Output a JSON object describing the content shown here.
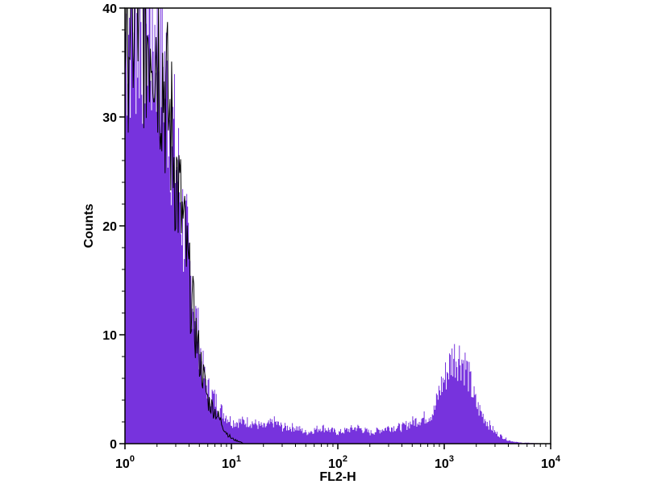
{
  "chart_data": {
    "type": "area",
    "title": "",
    "xlabel": "FL2-H",
    "ylabel": "Counts",
    "x_scale": "log",
    "xlim": [
      1,
      10000
    ],
    "ylim": [
      0,
      40
    ],
    "grid": false,
    "x_ticks": [
      {
        "base": "10",
        "exp": "0"
      },
      {
        "base": "10",
        "exp": "1"
      },
      {
        "base": "10",
        "exp": "2"
      },
      {
        "base": "10",
        "exp": "3"
      },
      {
        "base": "10",
        "exp": "4"
      }
    ],
    "y_ticks": [
      "0",
      "10",
      "20",
      "30",
      "40"
    ],
    "fill_color": "#7733dd",
    "outline_color": "#000000",
    "series": [
      {
        "kind": "filled",
        "x": [
          1.0,
          1.2,
          1.4,
          1.6,
          1.8,
          2.0,
          2.2,
          2.5,
          2.8,
          3.0,
          3.2,
          3.5,
          3.8,
          4.0,
          4.5,
          5.0,
          5.5,
          6.0,
          7.0,
          8.0,
          9.0,
          10,
          12,
          15,
          20,
          25,
          30,
          40,
          50,
          70,
          100,
          150,
          200,
          300,
          400,
          500,
          700,
          800,
          900,
          1000,
          1200,
          1400,
          1600,
          1800,
          2000,
          2500,
          3000,
          4000,
          5000,
          10000
        ],
        "y": [
          38,
          40,
          39,
          40,
          37,
          38,
          36,
          32,
          28,
          26,
          24,
          20,
          18,
          16,
          12,
          9,
          6,
          5,
          4,
          3,
          2.5,
          2,
          2,
          2,
          1.5,
          2,
          1.5,
          1.5,
          1,
          1.5,
          1,
          1.5,
          1,
          1.5,
          1.5,
          2,
          2.5,
          3,
          5,
          6,
          8,
          8,
          7,
          5,
          3.5,
          2,
          1,
          0.3,
          0.1,
          0
        ]
      },
      {
        "kind": "outline",
        "x": [
          1.0,
          1.2,
          1.4,
          1.6,
          1.8,
          2.0,
          2.2,
          2.5,
          2.8,
          3.0,
          3.2,
          3.5,
          3.8,
          4.0,
          4.5,
          5.0,
          5.5,
          6.0,
          7.0,
          8.0,
          9.0,
          10,
          11,
          12,
          13,
          10000
        ],
        "y": [
          40,
          39,
          40,
          38,
          40,
          37,
          35,
          31,
          28,
          25,
          23,
          20,
          17,
          15,
          11,
          8,
          6,
          4,
          3,
          2,
          1,
          0.5,
          0.3,
          0.2,
          0,
          0
        ]
      }
    ]
  }
}
